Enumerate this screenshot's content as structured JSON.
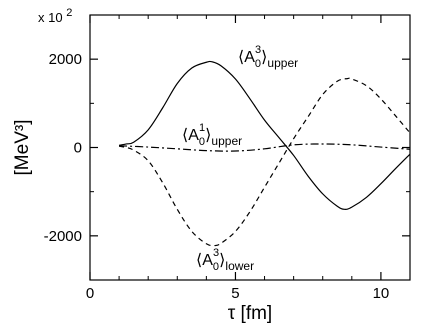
{
  "chart_data": {
    "type": "line",
    "title": "",
    "xlabel": "τ [fm]",
    "ylabel": "[MeV³]",
    "y_scale_label": "x 10",
    "y_scale_exponent": "2",
    "xlim": [
      0,
      11
    ],
    "ylim": [
      -3000,
      3000
    ],
    "x_ticks": [
      0,
      5,
      10
    ],
    "y_ticks": [
      -2000,
      0,
      2000
    ],
    "grid": false,
    "series": [
      {
        "name": "⟨A03⟩upper",
        "label_base": "A",
        "label_sub": "0",
        "label_sup": "3",
        "label_subscript_text": "upper",
        "style": "solid",
        "x": [
          1.0,
          1.25,
          1.5,
          2.0,
          2.5,
          3.0,
          3.5,
          4.0,
          4.2,
          4.5,
          5.0,
          5.5,
          6.0,
          6.5,
          7.0,
          7.5,
          8.0,
          8.5,
          8.75,
          9.0,
          9.5,
          10.0,
          10.5,
          11.0
        ],
        "values": [
          50,
          80,
          120,
          400,
          900,
          1450,
          1800,
          1930,
          1940,
          1850,
          1550,
          1100,
          620,
          220,
          -180,
          -650,
          -1050,
          -1330,
          -1400,
          -1350,
          -1130,
          -820,
          -480,
          -150
        ]
      },
      {
        "name": "⟨A01⟩upper",
        "label_base": "A",
        "label_sub": "0",
        "label_sup": "1",
        "label_subscript_text": "upper",
        "style": "dashdot",
        "x": [
          1.0,
          2.0,
          3.0,
          4.0,
          5.0,
          6.0,
          7.0,
          8.0,
          9.0,
          10.0,
          11.0
        ],
        "values": [
          40,
          10,
          -30,
          -70,
          -80,
          -30,
          60,
          80,
          60,
          10,
          -40
        ]
      },
      {
        "name": "⟨A03⟩lower",
        "label_base": "A",
        "label_sub": "0",
        "label_sup": "3",
        "label_subscript_text": "lower",
        "style": "dashed",
        "x": [
          1.0,
          1.25,
          1.5,
          2.0,
          2.5,
          3.0,
          3.5,
          4.0,
          4.3,
          4.5,
          5.0,
          5.5,
          6.0,
          6.5,
          7.0,
          7.5,
          8.0,
          8.5,
          8.85,
          9.0,
          9.5,
          10.0,
          10.5,
          11.0
        ],
        "values": [
          30,
          0,
          -60,
          -300,
          -800,
          -1400,
          -1900,
          -2180,
          -2220,
          -2170,
          -1900,
          -1450,
          -900,
          -350,
          200,
          700,
          1200,
          1500,
          1560,
          1550,
          1400,
          1100,
          720,
          330
        ]
      }
    ]
  }
}
